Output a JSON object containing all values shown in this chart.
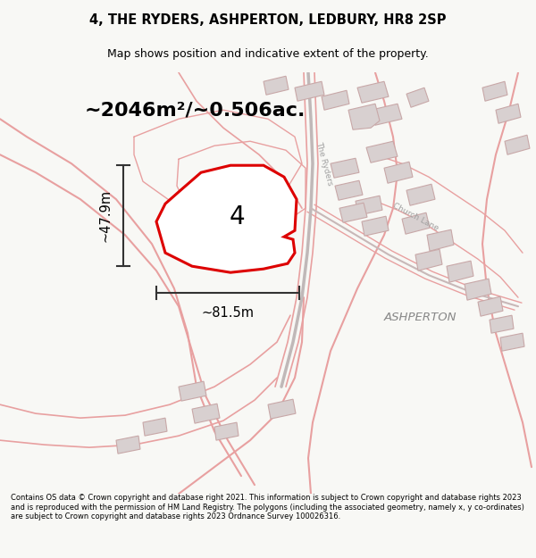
{
  "title": "4, THE RYDERS, ASHPERTON, LEDBURY, HR8 2SP",
  "subtitle": "Map shows position and indicative extent of the property.",
  "area_text": "~2046m²/~0.506ac.",
  "plot_number": "4",
  "width_label": "~81.5m",
  "height_label": "~47.9m",
  "ashperton_label": "ASHPERTON",
  "the_ryders_label": "The Ryders",
  "church_lane_label": "Church Lane",
  "footer": "Contains OS data © Crown copyright and database right 2021. This information is subject to Crown copyright and database rights 2023 and is reproduced with the permission of HM Land Registry. The polygons (including the associated geometry, namely x, y co-ordinates) are subject to Crown copyright and database rights 2023 Ordnance Survey 100026316.",
  "bg_color": "#f8f8f5",
  "map_bg": "#f8f8f5",
  "plot_color": "#dd0000",
  "plot_fill": "#ffffff",
  "road_color": "#e8a0a0",
  "road_color2": "#c8c8c8",
  "building_edge": "#c8a8a8",
  "building_fill": "#d8d0d0",
  "dim_color": "#333333"
}
